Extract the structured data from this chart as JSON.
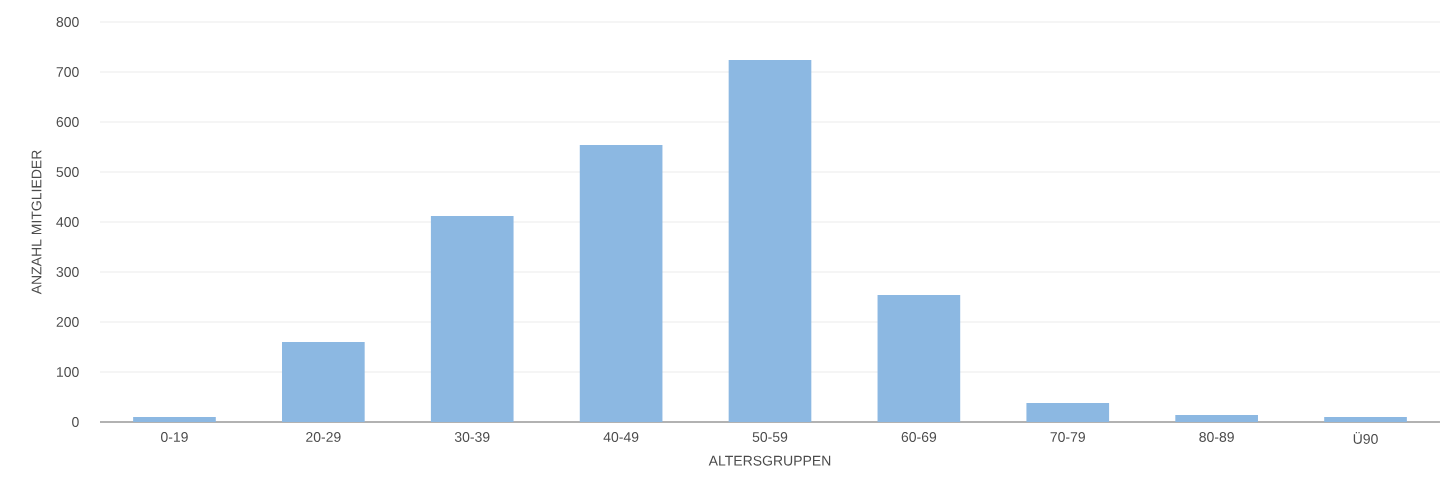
{
  "chart_data": {
    "type": "bar",
    "xlabel": "ALTERSGRUPPEN",
    "ylabel": "ANZAHL MITGLIEDER",
    "categories": [
      "0-19",
      "20-29",
      "30-39",
      "40-49",
      "50-59",
      "60-69",
      "70-79",
      "80-89",
      "Ü90"
    ],
    "values": [
      10,
      160,
      412,
      554,
      724,
      254,
      38,
      14,
      10
    ],
    "color": "#8cb8e2",
    "ylim": [
      0,
      800
    ],
    "yticks": [
      0,
      100,
      200,
      300,
      400,
      500,
      600,
      700,
      800
    ],
    "grid": "y"
  }
}
